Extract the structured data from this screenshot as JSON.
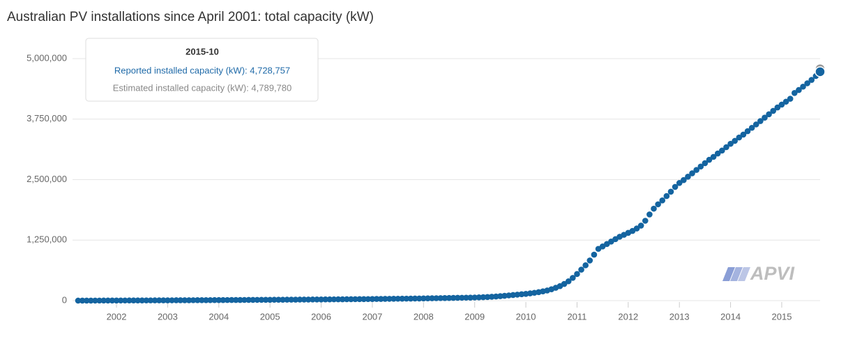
{
  "chart_data": {
    "type": "scatter",
    "title": "Australian PV installations since April 2001: total capacity (kW)",
    "xlim": [
      "2001-04",
      "2015-10"
    ],
    "xticks": [
      "2002",
      "2003",
      "2004",
      "2005",
      "2006",
      "2007",
      "2008",
      "2009",
      "2010",
      "2011",
      "2012",
      "2013",
      "2014",
      "2015"
    ],
    "ylim": [
      0,
      5000000
    ],
    "yticks": [
      0,
      {
        "value": 1250000,
        "label": "1,250,000"
      },
      {
        "value": 2500000,
        "label": "2,500,000"
      },
      {
        "value": 3750000,
        "label": "3,750,000"
      },
      {
        "value": 5000000,
        "label": "5,000,000"
      }
    ],
    "grid": true,
    "series": [
      {
        "name": "Reported installed capacity (kW)",
        "color": "#1464a0",
        "x": [
          "2001-04",
          "2001-05",
          "2001-06",
          "2001-07",
          "2001-08",
          "2001-09",
          "2001-10",
          "2001-11",
          "2001-12",
          "2002-01",
          "2002-02",
          "2002-03",
          "2002-04",
          "2002-05",
          "2002-06",
          "2002-07",
          "2002-08",
          "2002-09",
          "2002-10",
          "2002-11",
          "2002-12",
          "2003-01",
          "2003-02",
          "2003-03",
          "2003-04",
          "2003-05",
          "2003-06",
          "2003-07",
          "2003-08",
          "2003-09",
          "2003-10",
          "2003-11",
          "2003-12",
          "2004-01",
          "2004-02",
          "2004-03",
          "2004-04",
          "2004-05",
          "2004-06",
          "2004-07",
          "2004-08",
          "2004-09",
          "2004-10",
          "2004-11",
          "2004-12",
          "2005-01",
          "2005-02",
          "2005-03",
          "2005-04",
          "2005-05",
          "2005-06",
          "2005-07",
          "2005-08",
          "2005-09",
          "2005-10",
          "2005-11",
          "2005-12",
          "2006-01",
          "2006-02",
          "2006-03",
          "2006-04",
          "2006-05",
          "2006-06",
          "2006-07",
          "2006-08",
          "2006-09",
          "2006-10",
          "2006-11",
          "2006-12",
          "2007-01",
          "2007-02",
          "2007-03",
          "2007-04",
          "2007-05",
          "2007-06",
          "2007-07",
          "2007-08",
          "2007-09",
          "2007-10",
          "2007-11",
          "2007-12",
          "2008-01",
          "2008-02",
          "2008-03",
          "2008-04",
          "2008-05",
          "2008-06",
          "2008-07",
          "2008-08",
          "2008-09",
          "2008-10",
          "2008-11",
          "2008-12",
          "2009-01",
          "2009-02",
          "2009-03",
          "2009-04",
          "2009-05",
          "2009-06",
          "2009-07",
          "2009-08",
          "2009-09",
          "2009-10",
          "2009-11",
          "2009-12",
          "2010-01",
          "2010-02",
          "2010-03",
          "2010-04",
          "2010-05",
          "2010-06",
          "2010-07",
          "2010-08",
          "2010-09",
          "2010-10",
          "2010-11",
          "2010-12",
          "2011-01",
          "2011-02",
          "2011-03",
          "2011-04",
          "2011-05",
          "2011-06",
          "2011-07",
          "2011-08",
          "2011-09",
          "2011-10",
          "2011-11",
          "2011-12",
          "2012-01",
          "2012-02",
          "2012-03",
          "2012-04",
          "2012-05",
          "2012-06",
          "2012-07",
          "2012-08",
          "2012-09",
          "2012-10",
          "2012-11",
          "2012-12",
          "2013-01",
          "2013-02",
          "2013-03",
          "2013-04",
          "2013-05",
          "2013-06",
          "2013-07",
          "2013-08",
          "2013-09",
          "2013-10",
          "2013-11",
          "2013-12",
          "2014-01",
          "2014-02",
          "2014-03",
          "2014-04",
          "2014-05",
          "2014-06",
          "2014-07",
          "2014-08",
          "2014-09",
          "2014-10",
          "2014-11",
          "2014-12",
          "2015-01",
          "2015-02",
          "2015-03",
          "2015-04",
          "2015-05",
          "2015-06",
          "2015-07",
          "2015-08",
          "2015-09",
          "2015-10"
        ],
        "values": [
          300,
          600,
          900,
          1200,
          1500,
          1800,
          2100,
          2400,
          2700,
          3000,
          3300,
          3600,
          3900,
          4200,
          4500,
          4800,
          5100,
          5400,
          5700,
          6000,
          6300,
          6600,
          7000,
          7400,
          7800,
          8200,
          8600,
          9000,
          9400,
          9800,
          10200,
          10600,
          11000,
          11500,
          12000,
          12500,
          13000,
          13500,
          14000,
          14500,
          15000,
          15500,
          16000,
          16500,
          17000,
          17600,
          18200,
          18800,
          19400,
          20000,
          20600,
          21200,
          21800,
          22400,
          23000,
          23600,
          24200,
          24900,
          25600,
          26300,
          27000,
          27700,
          28400,
          29100,
          29800,
          30500,
          31200,
          31900,
          32600,
          33600,
          34600,
          35600,
          36600,
          37600,
          38600,
          39600,
          40600,
          41600,
          42600,
          43600,
          44600,
          46100,
          47600,
          49100,
          50600,
          52100,
          53600,
          55100,
          56600,
          58100,
          59600,
          61100,
          62600,
          65000,
          68000,
          71000,
          75000,
          80000,
          86000,
          93000,
          100000,
          108000,
          116000,
          124000,
          132000,
          140000,
          150000,
          162000,
          176000,
          192000,
          210000,
          235000,
          265000,
          300000,
          345000,
          400000,
          470000,
          550000,
          640000,
          730000,
          830000,
          950000,
          1070000,
          1120000,
          1170000,
          1220000,
          1270000,
          1320000,
          1360000,
          1400000,
          1440000,
          1490000,
          1550000,
          1650000,
          1780000,
          1900000,
          1990000,
          2070000,
          2160000,
          2250000,
          2350000,
          2430000,
          2490000,
          2560000,
          2630000,
          2700000,
          2770000,
          2840000,
          2910000,
          2970000,
          3040000,
          3100000,
          3170000,
          3240000,
          3300000,
          3370000,
          3430000,
          3500000,
          3570000,
          3640000,
          3710000,
          3780000,
          3850000,
          3920000,
          3990000,
          4050000,
          4110000,
          4170000,
          4290000,
          4350000,
          4420000,
          4490000,
          4560000,
          4640000,
          4728757
        ]
      },
      {
        "name": "Estimated installed capacity (kW)",
        "color": "#999999",
        "x": [
          "2015-10"
        ],
        "values": [
          4789780
        ]
      }
    ],
    "tooltip": {
      "title": "2015-10",
      "lines": [
        "Reported installed capacity (kW): 4,728,757",
        "Estimated installed capacity (kW): 4,789,780"
      ]
    },
    "logo": "APVI"
  }
}
